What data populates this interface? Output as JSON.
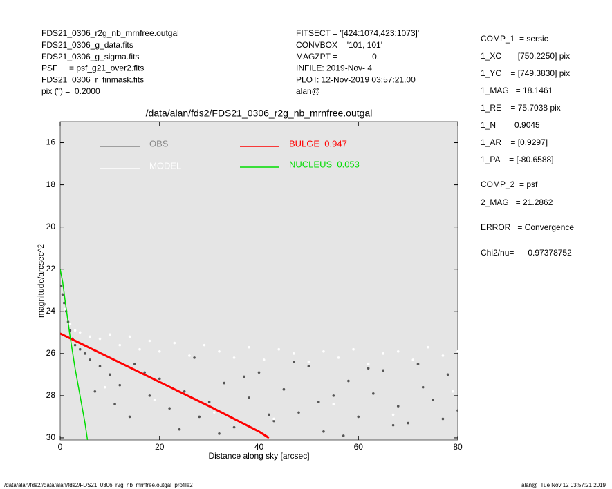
{
  "header": {
    "left": [
      "FDS21_0306_r2g_nb_mrnfree.outgal",
      "FDS21_0306_g_data.fits",
      "FDS21_0306_g_sigma.fits",
      "PSF     = psf_g21_over2.fits",
      "FDS21_0306_r_finmask.fits",
      "pix (\") =  0.2000"
    ],
    "middle": [
      "FITSECT = '[424:1074,423:1073]'",
      "CONVBOX = '101, 101'",
      "MAGZPT =               0.",
      "INFILE: 2019-Nov- 4",
      "PLOT: 12-Nov-2019 03:57:21.00",
      "alan@"
    ],
    "right": [
      "COMP_1  = sersic",
      "1_XC    = [750.2250] pix",
      "1_YC    = [749.3830] pix",
      "1_MAG   = 18.1461",
      "1_RE    = 75.7038 pix",
      "1_N     = 0.9045",
      "1_AR    = [0.9297]",
      "1_PA    = [-80.6588]",
      "COMP_2  = psf",
      "2_MAG   = 21.2862",
      "ERROR   = Convergence",
      "Chi2/nu=      0.97378752"
    ]
  },
  "footer": {
    "left": "/data/alan/fds2//data/alan/fds2/FDS21_0306_r2g_nb_mrnfree.outgal_profile2",
    "right": "alan@  Tue Nov 12 03:57:21 2019"
  },
  "chart_data": {
    "type": "scatter",
    "title": "/data/alan/fds2/FDS21_0306_r2g_nb_mrnfree.outgal",
    "x_label": "Distance along sky [arcsec]",
    "y_label": "magnitude/arcsec^2",
    "xlim": [
      0,
      80
    ],
    "ylim": [
      30.1,
      15
    ],
    "xticks": [
      0,
      20,
      40,
      60,
      80
    ],
    "yticks": [
      16,
      18,
      20,
      22,
      24,
      26,
      28,
      30
    ],
    "background": "#e5e5e5",
    "series": [
      {
        "name": "OBS",
        "type": "scatter",
        "color": "#555555",
        "x": [
          0.2,
          0.5,
          0.8,
          1.2,
          1.6,
          2.0,
          2.5,
          3,
          4,
          5,
          6,
          8,
          10,
          12,
          15,
          18,
          20,
          22,
          25,
          28,
          30,
          33,
          35,
          38,
          40,
          43,
          45,
          48,
          50,
          53,
          55,
          58,
          60,
          63,
          65,
          68,
          70,
          73,
          75,
          78,
          80,
          7,
          11,
          14,
          17,
          24,
          27,
          32,
          37,
          42,
          47,
          52,
          57,
          62,
          67,
          72,
          77
        ],
        "values": [
          22.8,
          23.2,
          23.6,
          24.0,
          24.5,
          24.9,
          25.3,
          25.6,
          25.8,
          26.0,
          26.3,
          26.6,
          27.0,
          27.5,
          26.5,
          28.0,
          27.2,
          28.6,
          27.8,
          29.0,
          28.3,
          27.4,
          29.5,
          28.1,
          26.9,
          29.2,
          27.7,
          28.8,
          26.6,
          29.7,
          28.0,
          27.3,
          29.0,
          27.9,
          26.8,
          28.5,
          29.3,
          27.6,
          28.2,
          27.0,
          28.7,
          27.8,
          28.4,
          29.0,
          26.9,
          29.6,
          26.2,
          29.8,
          27.1,
          28.9,
          26.4,
          28.3,
          29.9,
          26.7,
          29.4,
          26.5,
          29.1
        ]
      },
      {
        "name": "MODEL",
        "type": "scatter",
        "color": "#ffffff",
        "x": [
          1,
          2,
          3,
          4,
          6,
          8,
          10,
          12,
          14,
          16,
          18,
          20,
          23,
          26,
          29,
          32,
          35,
          38,
          41,
          44,
          47,
          50,
          53,
          56,
          59,
          62,
          65,
          68,
          71,
          74,
          77,
          80,
          9,
          19,
          31,
          43,
          55,
          67,
          79
        ],
        "values": [
          23.9,
          24.6,
          24.9,
          25.0,
          25.2,
          25.3,
          25.1,
          25.6,
          25.2,
          25.8,
          25.4,
          25.9,
          25.5,
          26.1,
          25.6,
          25.9,
          26.2,
          25.7,
          26.3,
          25.8,
          26.0,
          26.4,
          25.9,
          26.2,
          25.8,
          26.5,
          26.0,
          25.9,
          26.3,
          25.7,
          26.1,
          25.9,
          27.6,
          28.2,
          28.8,
          29.1,
          28.4,
          28.9,
          27.8
        ]
      },
      {
        "name": "BULGE  0.947",
        "type": "line",
        "color": "#ff0000",
        "x": [
          0,
          10,
          20,
          30,
          40,
          42
        ],
        "values": [
          25.05,
          26.2,
          27.35,
          28.5,
          29.7,
          30.0
        ]
      },
      {
        "name": "NUCLEUS  0.053",
        "type": "line",
        "color": "#00dd00",
        "x": [
          0,
          0.5,
          1,
          2,
          3,
          4,
          5,
          5.5
        ],
        "values": [
          22.0,
          22.6,
          23.5,
          25.2,
          26.7,
          28.0,
          29.3,
          30.1
        ]
      }
    ]
  }
}
